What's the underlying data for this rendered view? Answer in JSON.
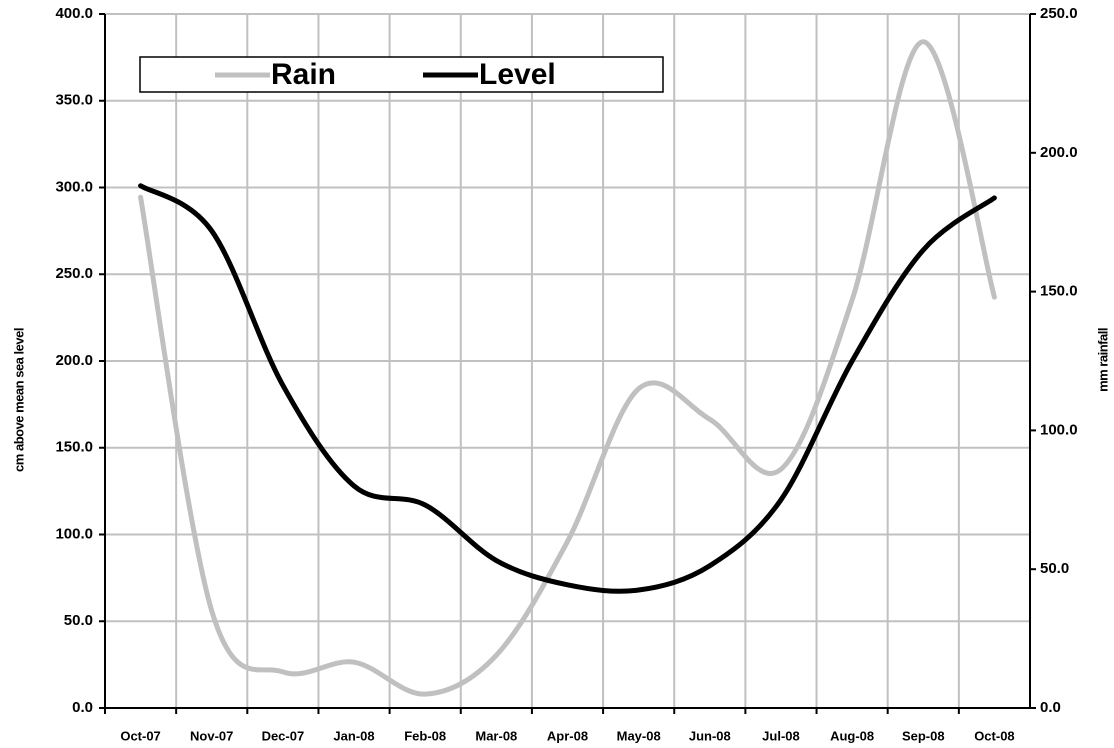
{
  "chart_data": {
    "type": "line",
    "categories": [
      "Oct-07",
      "Nov-07",
      "Dec-07",
      "Jan-08",
      "Feb-08",
      "Mar-08",
      "Apr-08",
      "May-08",
      "Jun-08",
      "Jul-08",
      "Aug-08",
      "Sep-08",
      "Oct-08"
    ],
    "series": [
      {
        "name": "Rain",
        "color": "#c0c0c0",
        "axis": "y2",
        "values": [
          184,
          35,
          13,
          16.5,
          5,
          19,
          60,
          115,
          104,
          86,
          147,
          240,
          148
        ]
      },
      {
        "name": "Level",
        "color": "#000000",
        "values": [
          301,
          275,
          186,
          128,
          117,
          85,
          71,
          68,
          82,
          120,
          200,
          264,
          294
        ]
      }
    ],
    "ylabel": "cm above mean sea level",
    "y2label": "mm rainfall",
    "ylim": [
      0,
      400
    ],
    "yticks": [
      {
        "value": 0,
        "label": "0.0"
      },
      {
        "value": 50,
        "label": "50.0"
      },
      {
        "value": 100,
        "label": "100.0"
      },
      {
        "value": 150,
        "label": "150.0"
      },
      {
        "value": 200,
        "label": "200.0"
      },
      {
        "value": 250,
        "label": "250.0"
      },
      {
        "value": 300,
        "label": "300.0"
      },
      {
        "value": 350,
        "label": "350.0"
      },
      {
        "value": 400,
        "label": "400.0"
      }
    ],
    "y2lim": [
      0,
      250
    ],
    "y2ticks": [
      {
        "value": 0,
        "label": "0.0"
      },
      {
        "value": 50,
        "label": "50.0"
      },
      {
        "value": 100,
        "label": "100.0"
      },
      {
        "value": 150,
        "label": "150.0"
      },
      {
        "value": 200,
        "label": "200.0"
      },
      {
        "value": 250,
        "label": "250.0"
      }
    ],
    "grid": true,
    "legend": "top-left"
  }
}
